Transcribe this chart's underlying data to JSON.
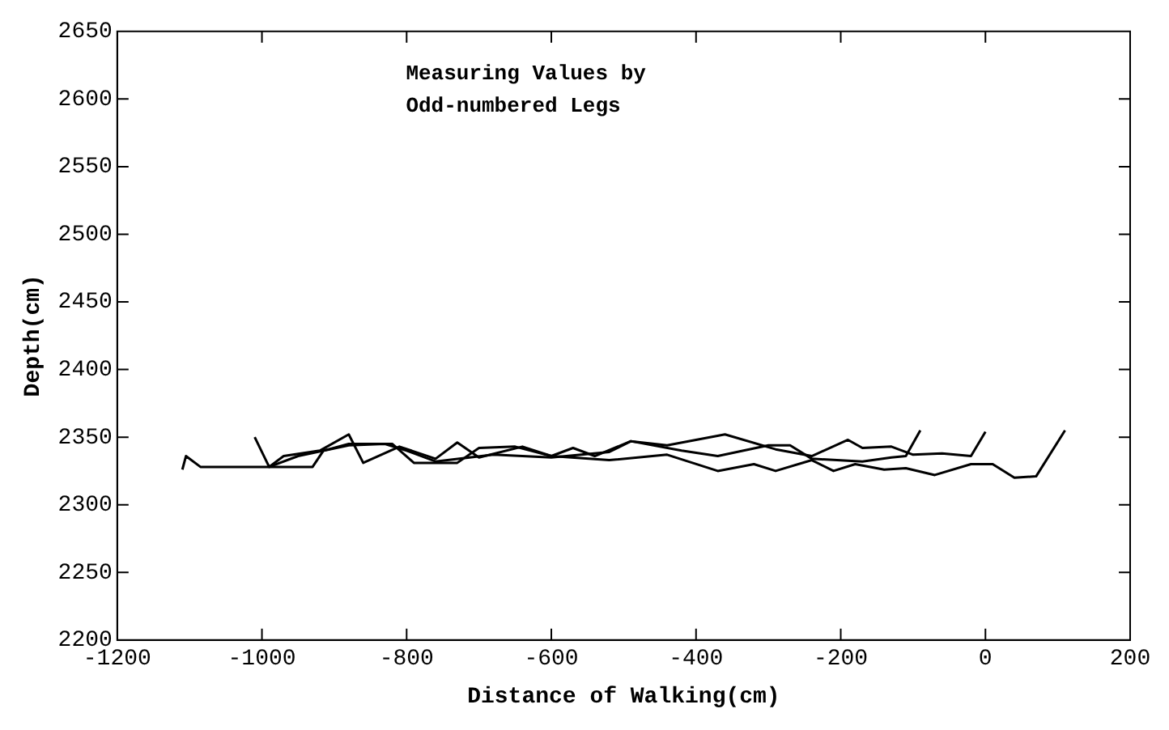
{
  "chart_data": {
    "type": "line",
    "title": "Measuring Values by\nOdd-numbered Legs",
    "xlabel": "Distance of Walking(cm)",
    "ylabel": "Depth(cm)",
    "xlim": [
      -1200,
      200
    ],
    "xticks": [
      -1200,
      -1000,
      -800,
      -600,
      -400,
      -200,
      0,
      200
    ],
    "ylim": [
      2200,
      2650
    ],
    "yticks": [
      2200,
      2250,
      2300,
      2350,
      2400,
      2450,
      2500,
      2550,
      2600,
      2650
    ],
    "grid": false,
    "legend": false,
    "marker": "none",
    "line_style": "solid",
    "series": [
      {
        "color": "#000000",
        "x": [
          -1110,
          -1105,
          -1085,
          -1000,
          -930,
          -915,
          -880,
          -820,
          -790,
          -730,
          -700,
          -650,
          -600,
          -520,
          -440,
          -370,
          -320,
          -290,
          -240,
          -210,
          -180,
          -140,
          -110,
          -70,
          -20,
          10,
          40,
          70,
          110
        ],
        "values": [
          2326,
          2336,
          2328,
          2328,
          2328,
          2340,
          2345,
          2345,
          2331,
          2331,
          2342,
          2343,
          2336,
          2333,
          2337,
          2325,
          2330,
          2325,
          2333,
          2325,
          2330,
          2326,
          2327,
          2322,
          2330,
          2330,
          2320,
          2321,
          2355
        ]
      },
      {
        "color": "#000000",
        "x": [
          -1010,
          -990,
          -970,
          -920,
          -880,
          -860,
          -810,
          -760,
          -730,
          -700,
          -640,
          -600,
          -570,
          -540,
          -490,
          -440,
          -360,
          -290,
          -240,
          -190,
          -170,
          -130,
          -100,
          -60,
          -20,
          0
        ],
        "values": [
          2350,
          2328,
          2336,
          2340,
          2352,
          2331,
          2343,
          2334,
          2346,
          2335,
          2343,
          2336,
          2342,
          2336,
          2347,
          2344,
          2352,
          2341,
          2336,
          2348,
          2342,
          2343,
          2337,
          2338,
          2336,
          2354
        ]
      },
      {
        "color": "#000000",
        "x": [
          -990,
          -950,
          -880,
          -830,
          -800,
          -760,
          -680,
          -600,
          -520,
          -490,
          -420,
          -370,
          -300,
          -270,
          -240,
          -170,
          -130,
          -110,
          -90
        ],
        "values": [
          2328,
          2336,
          2344,
          2345,
          2340,
          2332,
          2337,
          2335,
          2339,
          2347,
          2340,
          2336,
          2344,
          2344,
          2334,
          2332,
          2335,
          2336,
          2355
        ]
      }
    ]
  }
}
